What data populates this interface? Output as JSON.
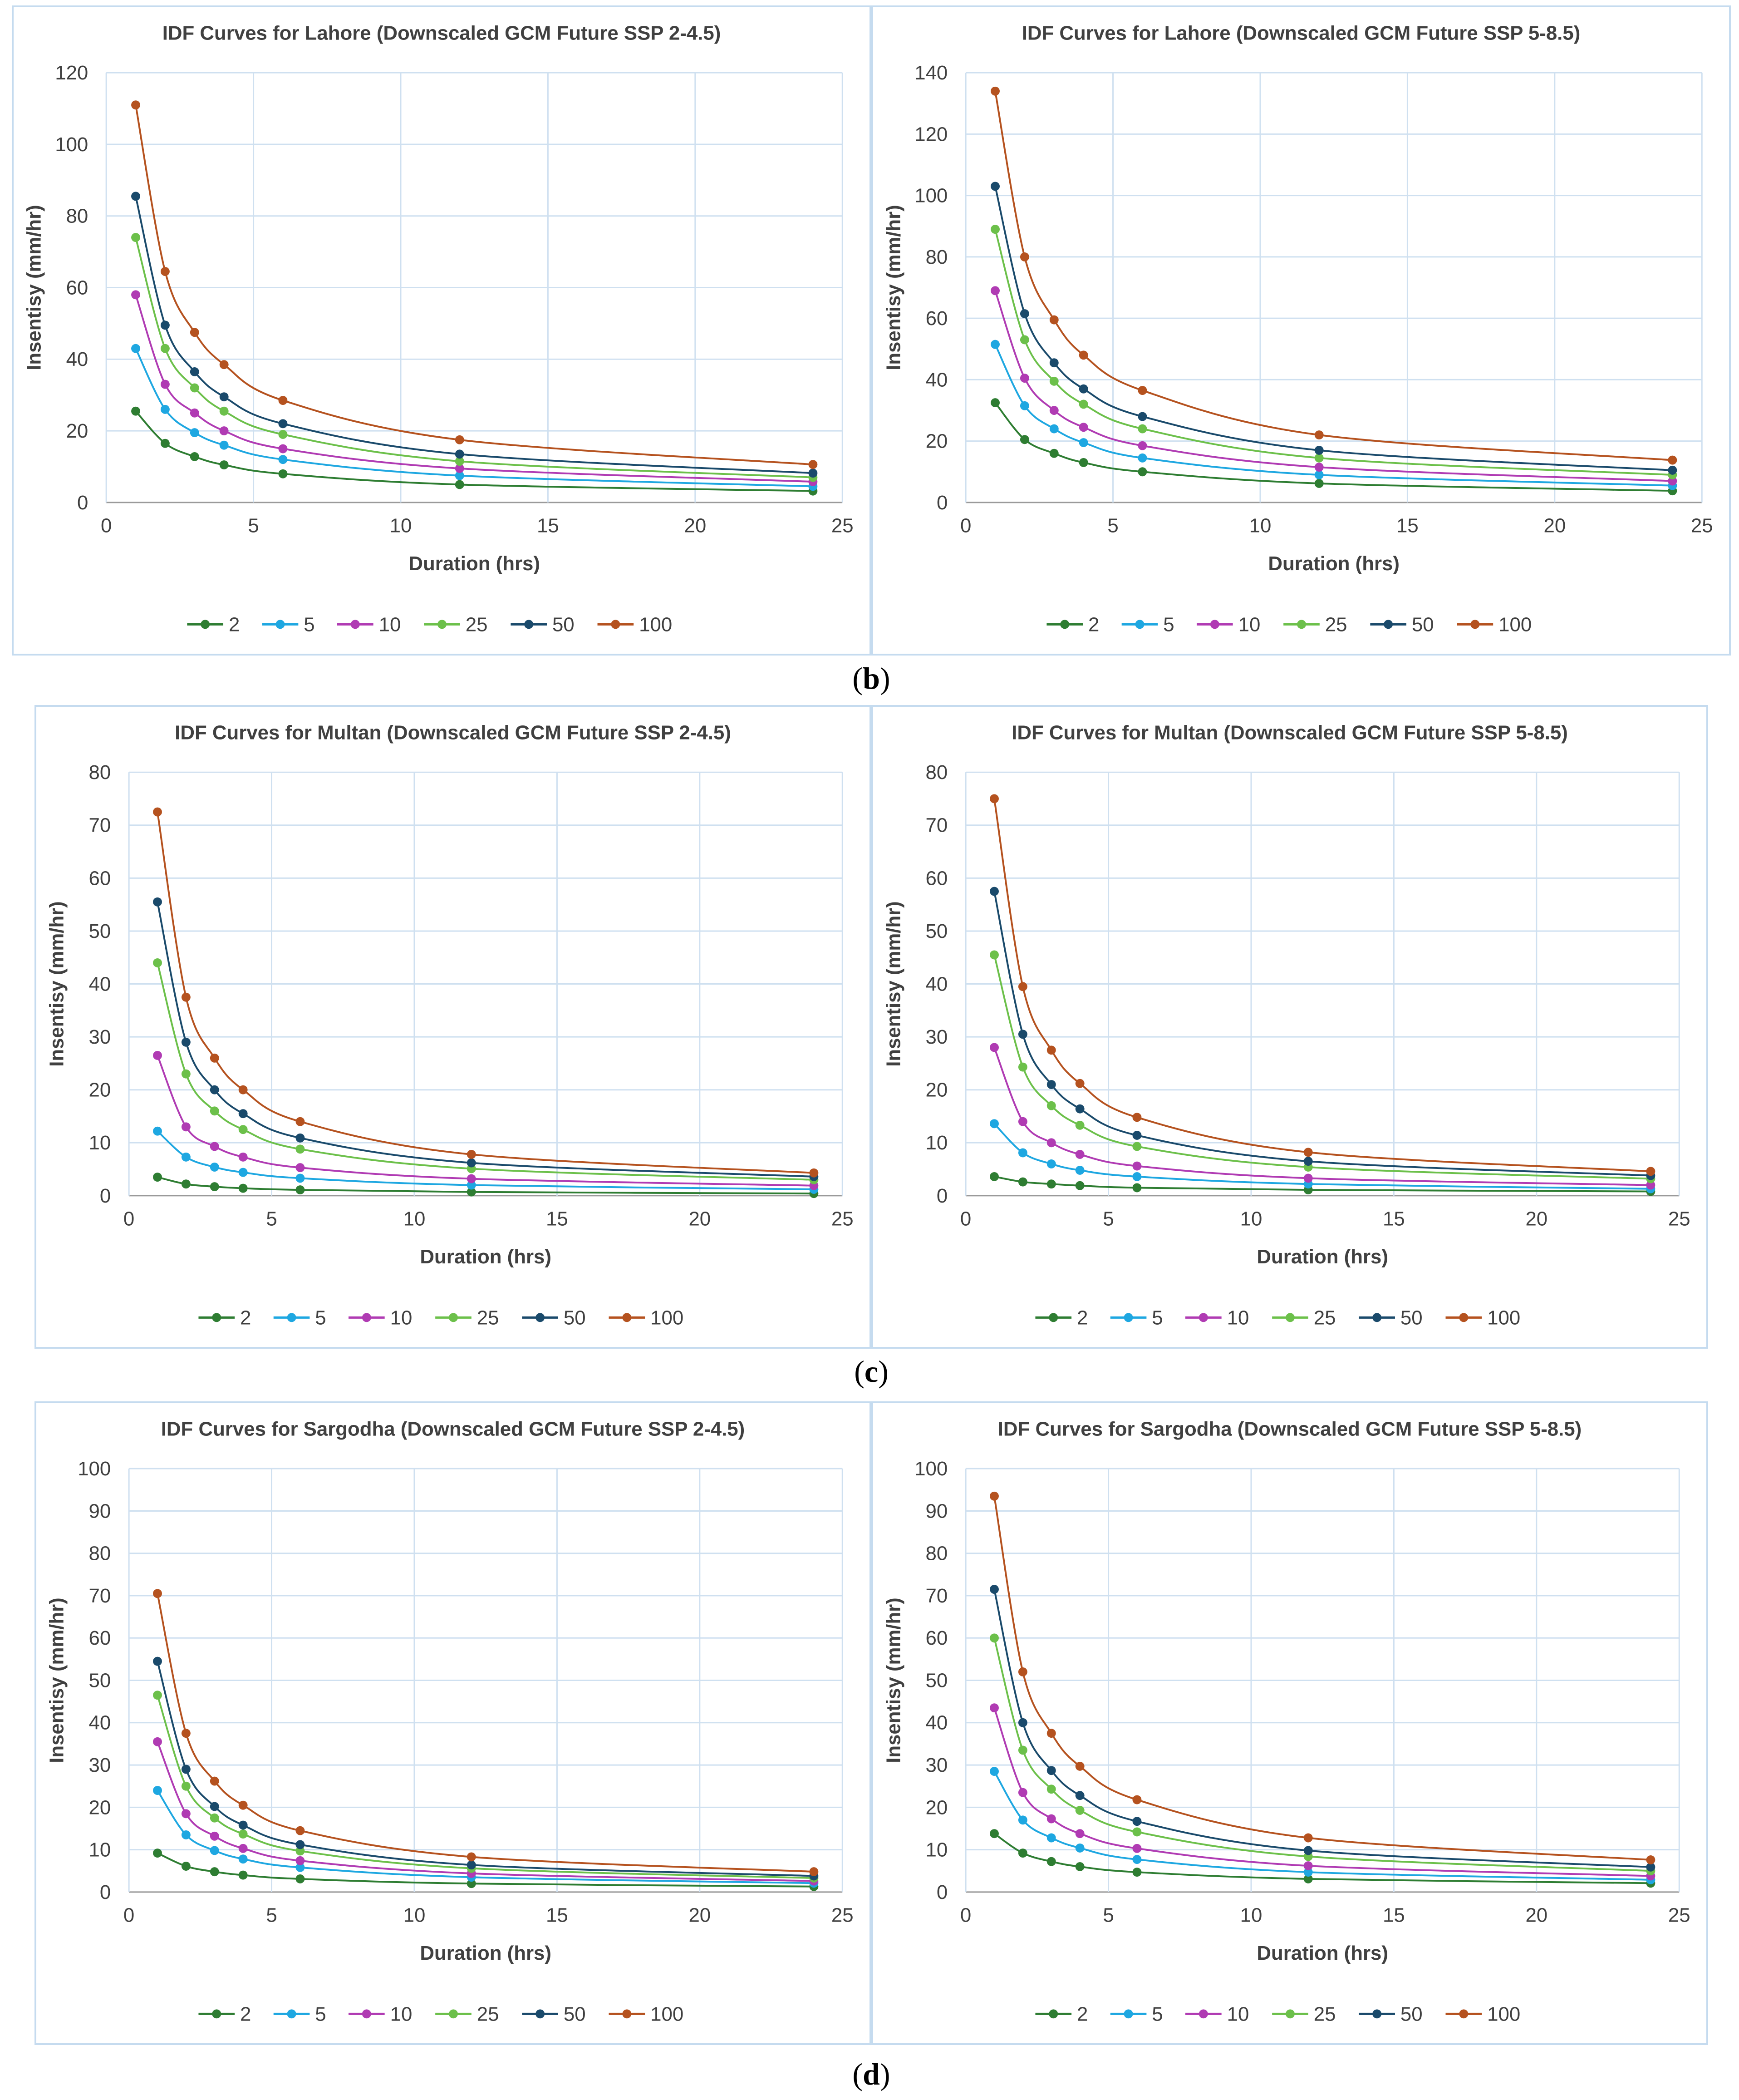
{
  "captions": [
    "b",
    "c",
    "d"
  ],
  "legend_colors": {
    "2": "#2e7d32",
    "5": "#1ea7e1",
    "10": "#b03bb3",
    "25": "#6cc04a",
    "50": "#1a4a6b",
    "100": "#b5521f"
  },
  "chart_data": [
    {
      "type": "line",
      "title": "IDF Curves for Lahore (Downscaled GCM Future SSP 2-4.5)",
      "xlabel": "Duration (hrs)",
      "ylabel": "Insentisy (mm/hr)",
      "xlim": [
        0,
        25
      ],
      "xticks": [
        0,
        5,
        10,
        15,
        20,
        25
      ],
      "ylim": [
        0,
        120
      ],
      "yticks": [
        0,
        20,
        40,
        60,
        80,
        100,
        120
      ],
      "grid": true,
      "legend": "bottom",
      "x": [
        1,
        2,
        3,
        4,
        6,
        12,
        24
      ],
      "series": [
        {
          "name": "2",
          "values": [
            25.5,
            16.5,
            12.8,
            10.5,
            8.0,
            5.0,
            3.2
          ]
        },
        {
          "name": "5",
          "values": [
            43.0,
            26.0,
            19.5,
            16.0,
            12.0,
            7.5,
            4.5
          ]
        },
        {
          "name": "10",
          "values": [
            58.0,
            33.0,
            25.0,
            20.0,
            15.0,
            9.5,
            5.8
          ]
        },
        {
          "name": "25",
          "values": [
            74.0,
            43.0,
            32.0,
            25.5,
            19.0,
            11.5,
            7.0
          ]
        },
        {
          "name": "50",
          "values": [
            85.5,
            49.5,
            36.5,
            29.5,
            22.0,
            13.5,
            8.2
          ]
        },
        {
          "name": "100",
          "values": [
            111.0,
            64.5,
            47.5,
            38.5,
            28.5,
            17.5,
            10.6
          ]
        }
      ]
    },
    {
      "type": "line",
      "title": "IDF Curves for Lahore (Downscaled GCM Future SSP 5-8.5)",
      "xlabel": "Duration (hrs)",
      "ylabel": "Insentisy (mm/hr)",
      "xlim": [
        0,
        25
      ],
      "xticks": [
        0,
        5,
        10,
        15,
        20,
        25
      ],
      "ylim": [
        0,
        140
      ],
      "yticks": [
        0,
        20,
        40,
        60,
        80,
        100,
        120,
        140
      ],
      "grid": true,
      "legend": "bottom",
      "x": [
        1,
        2,
        3,
        4,
        6,
        12,
        24
      ],
      "series": [
        {
          "name": "2",
          "values": [
            32.5,
            20.5,
            16.0,
            13.0,
            10.0,
            6.2,
            3.8
          ]
        },
        {
          "name": "5",
          "values": [
            51.5,
            31.5,
            24.0,
            19.5,
            14.5,
            9.0,
            5.5
          ]
        },
        {
          "name": "10",
          "values": [
            69.0,
            40.5,
            30.0,
            24.5,
            18.5,
            11.5,
            7.0
          ]
        },
        {
          "name": "25",
          "values": [
            89.0,
            53.0,
            39.5,
            32.0,
            24.0,
            14.5,
            9.0
          ]
        },
        {
          "name": "50",
          "values": [
            103.0,
            61.5,
            45.5,
            37.0,
            28.0,
            17.0,
            10.5
          ]
        },
        {
          "name": "100",
          "values": [
            134.0,
            80.0,
            59.5,
            48.0,
            36.5,
            22.0,
            13.8
          ]
        }
      ]
    },
    {
      "type": "line",
      "title": "IDF Curves for Multan (Downscaled GCM Future SSP 2-4.5)",
      "xlabel": "Duration (hrs)",
      "ylabel": "Insentisy (mm/hr)",
      "xlim": [
        0,
        25
      ],
      "xticks": [
        0,
        5,
        10,
        15,
        20,
        25
      ],
      "ylim": [
        0,
        80
      ],
      "yticks": [
        0,
        10,
        20,
        30,
        40,
        50,
        60,
        70,
        80
      ],
      "grid": true,
      "legend": "bottom",
      "x": [
        1,
        2,
        3,
        4,
        6,
        12,
        24
      ],
      "series": [
        {
          "name": "2",
          "values": [
            3.5,
            2.2,
            1.7,
            1.4,
            1.1,
            0.7,
            0.4
          ]
        },
        {
          "name": "5",
          "values": [
            12.2,
            7.3,
            5.4,
            4.4,
            3.3,
            2.0,
            1.2
          ]
        },
        {
          "name": "10",
          "values": [
            26.5,
            13.0,
            9.3,
            7.3,
            5.3,
            3.2,
            1.9
          ]
        },
        {
          "name": "25",
          "values": [
            44.0,
            23.0,
            16.0,
            12.5,
            8.8,
            5.1,
            3.0
          ]
        },
        {
          "name": "50",
          "values": [
            55.5,
            29.0,
            20.0,
            15.5,
            10.9,
            6.2,
            3.6
          ]
        },
        {
          "name": "100",
          "values": [
            72.5,
            37.5,
            26.0,
            20.0,
            14.0,
            7.8,
            4.3
          ]
        }
      ]
    },
    {
      "type": "line",
      "title": "IDF Curves for Multan (Downscaled GCM Future SSP 5-8.5)",
      "xlabel": "Duration (hrs)",
      "ylabel": "Insentisy (mm/hr)",
      "xlim": [
        0,
        25
      ],
      "xticks": [
        0,
        5,
        10,
        15,
        20,
        25
      ],
      "ylim": [
        0,
        80
      ],
      "yticks": [
        0,
        10,
        20,
        30,
        40,
        50,
        60,
        70,
        80
      ],
      "grid": true,
      "legend": "bottom",
      "x": [
        1,
        2,
        3,
        4,
        6,
        12,
        24
      ],
      "series": [
        {
          "name": "2",
          "values": [
            3.6,
            2.6,
            2.2,
            1.9,
            1.5,
            1.1,
            0.8
          ]
        },
        {
          "name": "5",
          "values": [
            13.6,
            8.1,
            6.0,
            4.8,
            3.6,
            2.2,
            1.3
          ]
        },
        {
          "name": "10",
          "values": [
            28.0,
            14.0,
            10.0,
            7.8,
            5.6,
            3.3,
            2.0
          ]
        },
        {
          "name": "25",
          "values": [
            45.5,
            24.3,
            17.0,
            13.3,
            9.3,
            5.4,
            3.2
          ]
        },
        {
          "name": "50",
          "values": [
            57.5,
            30.5,
            21.0,
            16.4,
            11.4,
            6.5,
            3.8
          ]
        },
        {
          "name": "100",
          "values": [
            75.0,
            39.5,
            27.5,
            21.2,
            14.8,
            8.2,
            4.6
          ]
        }
      ]
    },
    {
      "type": "line",
      "title": "IDF Curves for Sargodha (Downscaled GCM Future SSP 2-4.5)",
      "xlabel": "Duration (hrs)",
      "ylabel": "Insentisy (mm/hr)",
      "xlim": [
        0,
        25
      ],
      "xticks": [
        0,
        5,
        10,
        15,
        20,
        25
      ],
      "ylim": [
        0,
        100
      ],
      "yticks": [
        0,
        10,
        20,
        30,
        40,
        50,
        60,
        70,
        80,
        90,
        100
      ],
      "grid": true,
      "legend": "bottom",
      "x": [
        1,
        2,
        3,
        4,
        6,
        12,
        24
      ],
      "series": [
        {
          "name": "2",
          "values": [
            9.2,
            6.1,
            4.8,
            4.0,
            3.1,
            2.0,
            1.3
          ]
        },
        {
          "name": "5",
          "values": [
            24.0,
            13.5,
            9.8,
            7.8,
            5.8,
            3.5,
            2.1
          ]
        },
        {
          "name": "10",
          "values": [
            35.5,
            18.5,
            13.2,
            10.3,
            7.4,
            4.4,
            2.6
          ]
        },
        {
          "name": "25",
          "values": [
            46.5,
            25.0,
            17.5,
            13.7,
            9.7,
            5.6,
            3.3
          ]
        },
        {
          "name": "50",
          "values": [
            54.5,
            29.0,
            20.2,
            15.8,
            11.2,
            6.4,
            3.8
          ]
        },
        {
          "name": "100",
          "values": [
            70.5,
            37.5,
            26.2,
            20.5,
            14.5,
            8.3,
            4.8
          ]
        }
      ]
    },
    {
      "type": "line",
      "title": "IDF Curves for Sargodha (Downscaled GCM Future SSP 5-8.5)",
      "xlabel": "Duration (hrs)",
      "ylabel": "Insentisy (mm/hr)",
      "xlim": [
        0,
        25
      ],
      "xticks": [
        0,
        5,
        10,
        15,
        20,
        25
      ],
      "ylim": [
        0,
        100
      ],
      "yticks": [
        0,
        10,
        20,
        30,
        40,
        50,
        60,
        70,
        80,
        90,
        100
      ],
      "grid": true,
      "legend": "bottom",
      "x": [
        1,
        2,
        3,
        4,
        6,
        12,
        24
      ],
      "series": [
        {
          "name": "2",
          "values": [
            13.8,
            9.2,
            7.2,
            6.0,
            4.7,
            3.1,
            2.1
          ]
        },
        {
          "name": "5",
          "values": [
            28.5,
            17.0,
            12.8,
            10.4,
            7.7,
            4.7,
            2.9
          ]
        },
        {
          "name": "10",
          "values": [
            43.5,
            23.5,
            17.3,
            13.8,
            10.3,
            6.2,
            3.8
          ]
        },
        {
          "name": "25",
          "values": [
            60.0,
            33.5,
            24.3,
            19.3,
            14.2,
            8.4,
            5.0
          ]
        },
        {
          "name": "50",
          "values": [
            71.5,
            40.0,
            28.7,
            22.8,
            16.7,
            9.8,
            5.9
          ]
        },
        {
          "name": "100",
          "values": [
            93.5,
            52.0,
            37.5,
            29.7,
            21.8,
            12.8,
            7.6
          ]
        }
      ]
    }
  ]
}
